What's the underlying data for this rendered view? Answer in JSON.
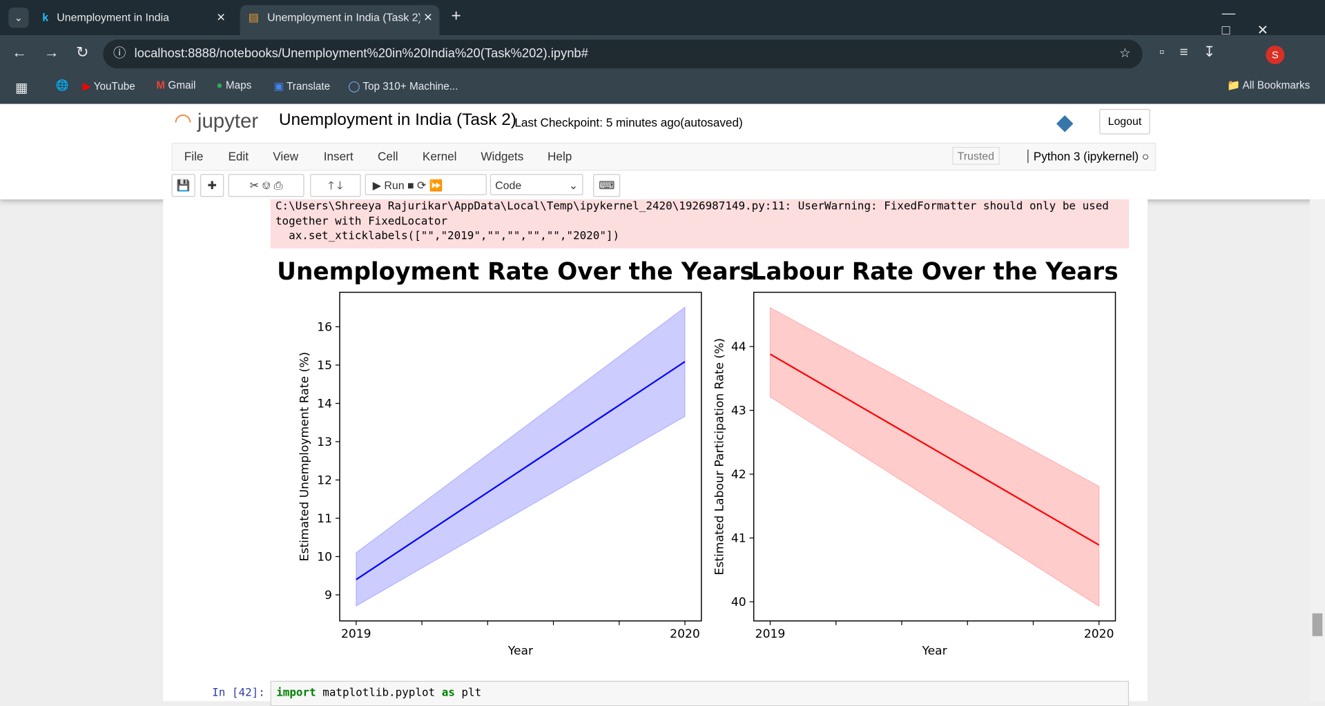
{
  "browser": {
    "tabs": [
      "Unemployment in India",
      "Unemployment in India (Task 2)"
    ],
    "url": "localhost:8888/notebooks/Unemployment%20in%20India%20(Task%202).ipynb#",
    "bookmarks": [
      "YouTube",
      "Gmail",
      "Maps",
      "Translate",
      "Top 310+ Machine..."
    ],
    "all_bookmarks": "All Bookmarks",
    "profile": "S"
  },
  "jupyter": {
    "logo": "jupyter",
    "notebook_title": "Unemployment in India (Task 2)",
    "checkpoint": "Last Checkpoint: 5 minutes ago",
    "autosave": "(autosaved)",
    "logout": "Logout",
    "menu": [
      "File",
      "Edit",
      "View",
      "Insert",
      "Cell",
      "Kernel",
      "Widgets",
      "Help"
    ],
    "trusted": "Trusted",
    "kernel": "Python 3 (ipykernel)",
    "run": "Run",
    "cell_type": "Code"
  },
  "output": {
    "warning": [
      "C:\\Users\\Shreeya Rajurikar\\AppData\\Local\\Temp\\ipykernel_2420\\1926987149.py:11: UserWarning: FixedFormatter should only be used",
      "together with FixedLocator",
      "  ax.set_xticklabels([\"\",\"2019\",\"\",\"\",\"\",\"\",\"2020\"])"
    ]
  },
  "chart_data": [
    {
      "type": "line",
      "title": "Unemployment Rate Over the Years",
      "x_label": "Year",
      "y_label": "Estimated Unemployment Rate (%)",
      "x": [
        2019,
        2020
      ],
      "series": [
        {
          "color": "#0000ff",
          "values": [
            9.4,
            15.09
          ]
        }
      ],
      "band": {
        "color": "#0000ff",
        "lower": [
          8.71,
          13.66
        ],
        "upper": [
          10.1,
          16.51
        ]
      },
      "xlim": [
        2018.95,
        2020.05
      ],
      "xticks": [
        2019,
        2020
      ],
      "ylim": [
        8.32,
        16.9
      ],
      "yticks": [
        9,
        10,
        11,
        12,
        13,
        14,
        15,
        16
      ]
    },
    {
      "type": "line",
      "title": "Labour Rate Over the Years",
      "x_label": "Year",
      "y_label": "Estimated Labour Participation Rate (%)",
      "x": [
        2019,
        2020
      ],
      "series": [
        {
          "color": "#ff0000",
          "values": [
            43.88,
            40.89
          ]
        }
      ],
      "band": {
        "color": "#ff0000",
        "lower": [
          43.21,
          39.93
        ],
        "upper": [
          44.61,
          41.81
        ]
      },
      "xlim": [
        2018.95,
        2020.05
      ],
      "xticks": [
        2019,
        2020
      ],
      "ylim": [
        39.7,
        44.85
      ],
      "yticks": [
        40,
        41,
        42,
        43,
        44
      ]
    }
  ],
  "next_cell": {
    "prompt": "In [42]:",
    "keyword_import": "import",
    "module": "matplotlib.pyplot",
    "keyword_as": "as",
    "alias": "plt"
  }
}
